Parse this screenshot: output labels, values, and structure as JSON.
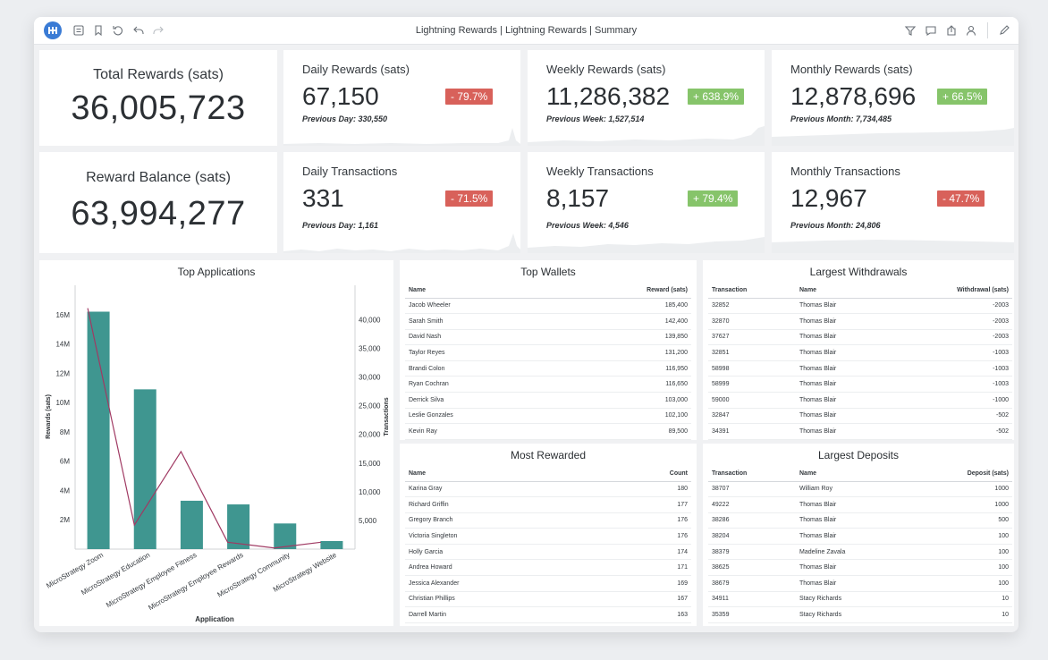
{
  "toolbar": {
    "title": "Lightning Rewards | Lightning Rewards | Summary",
    "left_icons": [
      "table-of-contents-icon",
      "bookmark-icon",
      "reset-icon",
      "undo-icon",
      "redo-icon"
    ],
    "right_icons": [
      "filter-icon",
      "comment-icon",
      "share-icon",
      "user-icon",
      "edit-icon"
    ]
  },
  "summary": {
    "total_rewards": {
      "label": "Total Rewards (sats)",
      "value": "36,005,723"
    },
    "reward_balance": {
      "label": "Reward Balance (sats)",
      "value": "63,994,277"
    }
  },
  "kpis": {
    "daily_rewards": {
      "label": "Daily Rewards (sats)",
      "value": "67,150",
      "change": "- 79.7%",
      "previous": "Previous Day: 330,550"
    },
    "weekly_rewards": {
      "label": "Weekly Rewards (sats)",
      "value": "11,286,382",
      "change": "+ 638.9%",
      "previous": "Previous Week: 1,527,514"
    },
    "monthly_rewards": {
      "label": "Monthly Rewards (sats)",
      "value": "12,878,696",
      "change": "+ 66.5%",
      "previous": "Previous Month: 7,734,485"
    },
    "daily_transactions": {
      "label": "Daily Transactions",
      "value": "331",
      "change": "- 71.5%",
      "previous": "Previous Day: 1,161"
    },
    "weekly_transactions": {
      "label": "Weekly Transactions",
      "value": "8,157",
      "change": "+ 79.4%",
      "previous": "Previous Week: 4,546"
    },
    "monthly_transactions": {
      "label": "Monthly Transactions",
      "value": "12,967",
      "change": "- 47.7%",
      "previous": "Previous Month: 24,806"
    }
  },
  "colors": {
    "negative": "#d8615a",
    "positive": "#86c46a",
    "bar": "#3f9690",
    "line": "#a03a63",
    "brand": "#3a7bd5"
  },
  "chart_data": {
    "type": "bar",
    "title": "Top Applications",
    "xlabel": "Application",
    "ylabel": "Rewards (sats)",
    "y2label": "Transactions",
    "categories": [
      "MicroStrategy Zoom",
      "MicroStrategy Education",
      "MicroStrategy Employee Fitness",
      "MicroStrategy Employee Rewards",
      "MicroStrategy Community",
      "MicroStrategy Website"
    ],
    "series": [
      {
        "type": "bar",
        "axis": "left",
        "values": [
          16200000,
          10900000,
          3300000,
          3050000,
          1750000,
          550000
        ]
      },
      {
        "type": "line",
        "axis": "right",
        "values": [
          42000,
          4200,
          17000,
          1200,
          200,
          1200
        ]
      }
    ],
    "ylim": [
      0,
      18000000
    ],
    "yticks": [
      2000000,
      4000000,
      6000000,
      8000000,
      10000000,
      12000000,
      14000000,
      16000000
    ],
    "ytick_labels": [
      "2M",
      "4M",
      "6M",
      "8M",
      "10M",
      "12M",
      "14M",
      "16M"
    ],
    "y2lim": [
      0,
      46000
    ],
    "y2ticks": [
      5000,
      10000,
      15000,
      20000,
      25000,
      30000,
      35000,
      40000
    ],
    "y2tick_labels": [
      "5,000",
      "10,000",
      "15,000",
      "20,000",
      "25,000",
      "30,000",
      "35,000",
      "40,000"
    ]
  },
  "top_wallets": {
    "title": "Top Wallets",
    "columns": [
      "Name",
      "Reward (sats)"
    ],
    "rows": [
      [
        "Jacob Wheeler",
        "185,400"
      ],
      [
        "Sarah Smith",
        "142,400"
      ],
      [
        "David Nash",
        "139,850"
      ],
      [
        "Taylor Reyes",
        "131,200"
      ],
      [
        "Brandi Colon",
        "116,950"
      ],
      [
        "Ryan Cochran",
        "116,650"
      ],
      [
        "Derrick Silva",
        "103,000"
      ],
      [
        "Leslie Gonzales",
        "102,100"
      ],
      [
        "Kevin Ray",
        "89,500"
      ]
    ]
  },
  "largest_withdrawals": {
    "title": "Largest Withdrawals",
    "columns": [
      "Transaction",
      "Name",
      "Withdrawal (sats)"
    ],
    "rows": [
      [
        "32852",
        "Thomas Blair",
        "-2003"
      ],
      [
        "32870",
        "Thomas Blair",
        "-2003"
      ],
      [
        "37627",
        "Thomas Blair",
        "-2003"
      ],
      [
        "32851",
        "Thomas Blair",
        "-1003"
      ],
      [
        "58998",
        "Thomas Blair",
        "-1003"
      ],
      [
        "58999",
        "Thomas Blair",
        "-1003"
      ],
      [
        "59000",
        "Thomas Blair",
        "-1000"
      ],
      [
        "32847",
        "Thomas Blair",
        "-502"
      ],
      [
        "34391",
        "Thomas Blair",
        "-502"
      ]
    ]
  },
  "most_rewarded": {
    "title": "Most Rewarded",
    "columns": [
      "Name",
      "Count"
    ],
    "rows": [
      [
        "Karina Gray",
        "180"
      ],
      [
        "Richard Griffin",
        "177"
      ],
      [
        "Gregory Branch",
        "176"
      ],
      [
        "Victoria Singleton",
        "176"
      ],
      [
        "Holly Garcia",
        "174"
      ],
      [
        "Andrea Howard",
        "171"
      ],
      [
        "Jessica Alexander",
        "169"
      ],
      [
        "Christian Phillips",
        "167"
      ],
      [
        "Darrell Martin",
        "163"
      ]
    ]
  },
  "largest_deposits": {
    "title": "Largest Deposits",
    "columns": [
      "Transaction",
      "Name",
      "Deposit (sats)"
    ],
    "rows": [
      [
        "38707",
        "William Roy",
        "1000"
      ],
      [
        "49222",
        "Thomas Blair",
        "1000"
      ],
      [
        "38286",
        "Thomas Blair",
        "500"
      ],
      [
        "38204",
        "Thomas Blair",
        "100"
      ],
      [
        "38379",
        "Madeline Zavala",
        "100"
      ],
      [
        "38625",
        "Thomas Blair",
        "100"
      ],
      [
        "38679",
        "Thomas Blair",
        "100"
      ],
      [
        "34911",
        "Stacy Richards",
        "10"
      ],
      [
        "35359",
        "Stacy Richards",
        "10"
      ]
    ]
  }
}
